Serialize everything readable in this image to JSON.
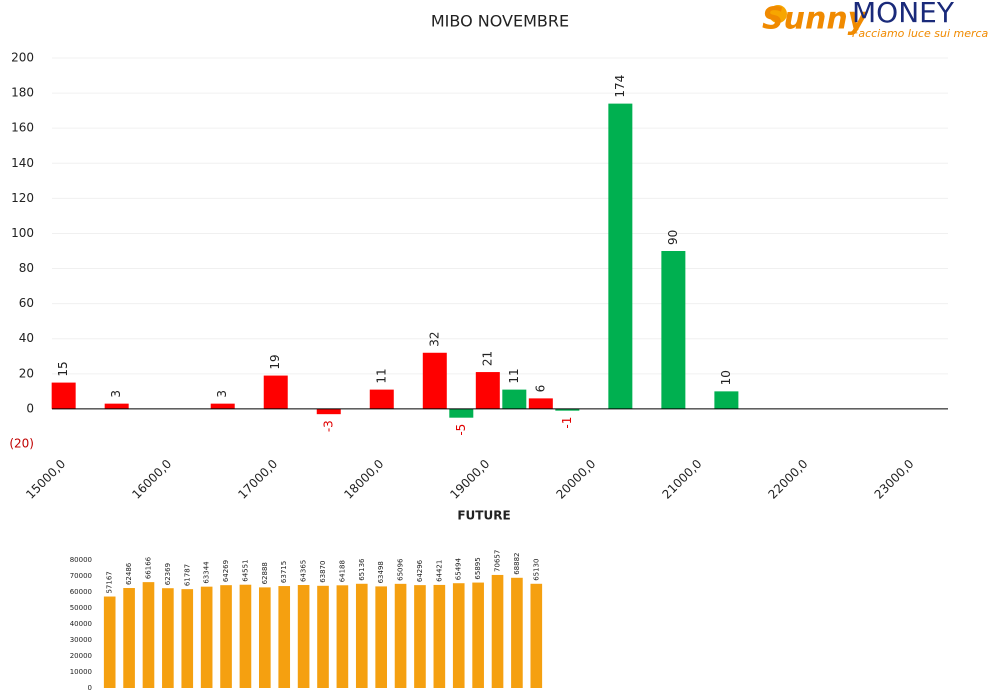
{
  "logo": {
    "brand": "Sunny",
    "brand2": "MONEY",
    "tagline": "Facciamo luce sui mercati"
  },
  "chart_data": [
    {
      "type": "bar",
      "title": "MIBO NOVEMBRE",
      "xlabel": "FUTURE",
      "series": [
        {
          "color": "#ff0000",
          "x": [
            15000,
            15500,
            16500,
            17000,
            17500,
            18000,
            18500,
            19000,
            19500
          ],
          "values": [
            15,
            3,
            3,
            19,
            -3,
            11,
            32,
            21,
            6
          ]
        },
        {
          "color": "#00b050",
          "x": [
            18750,
            19250,
            19750,
            20250,
            20750,
            21250
          ],
          "values": [
            -5,
            11,
            -1,
            174,
            90,
            10
          ]
        }
      ],
      "xlim": [
        14890,
        23340
      ],
      "xticks": [
        {
          "value": 15000,
          "label": "15000,0"
        },
        {
          "value": 16000,
          "label": "16000,0"
        },
        {
          "value": 17000,
          "label": "17000,0"
        },
        {
          "value": 18000,
          "label": "18000,0"
        },
        {
          "value": 19000,
          "label": "19000,0"
        },
        {
          "value": 20000,
          "label": "20000,0"
        },
        {
          "value": 21000,
          "label": "21000,0"
        },
        {
          "value": 22000,
          "label": "22000,0"
        },
        {
          "value": 23000,
          "label": "23000,0"
        }
      ],
      "ylim": [
        -20,
        200
      ],
      "yticks": [
        {
          "value": -20,
          "label": "(20)"
        },
        0,
        20,
        40,
        60,
        80,
        100,
        120,
        140,
        160,
        180,
        200
      ],
      "grid": true
    },
    {
      "type": "bar",
      "color": "#f5a010",
      "categories": [
        null,
        null,
        null,
        null,
        null,
        null,
        null,
        null,
        null,
        null,
        null,
        null,
        null,
        null,
        null,
        null,
        null,
        null,
        null,
        null,
        null,
        null,
        null
      ],
      "values": [
        57167,
        62486,
        66166,
        62369,
        61787,
        63344,
        64269,
        64551,
        62888,
        63715,
        64365,
        63870,
        64188,
        65136,
        63498,
        65096,
        64296,
        64421,
        65494,
        65895,
        70657,
        68882,
        65130
      ],
      "ylim": [
        0,
        80000
      ],
      "yticks": [
        0,
        10000,
        20000,
        30000,
        40000,
        50000,
        60000,
        70000,
        80000
      ],
      "grid": false
    }
  ]
}
